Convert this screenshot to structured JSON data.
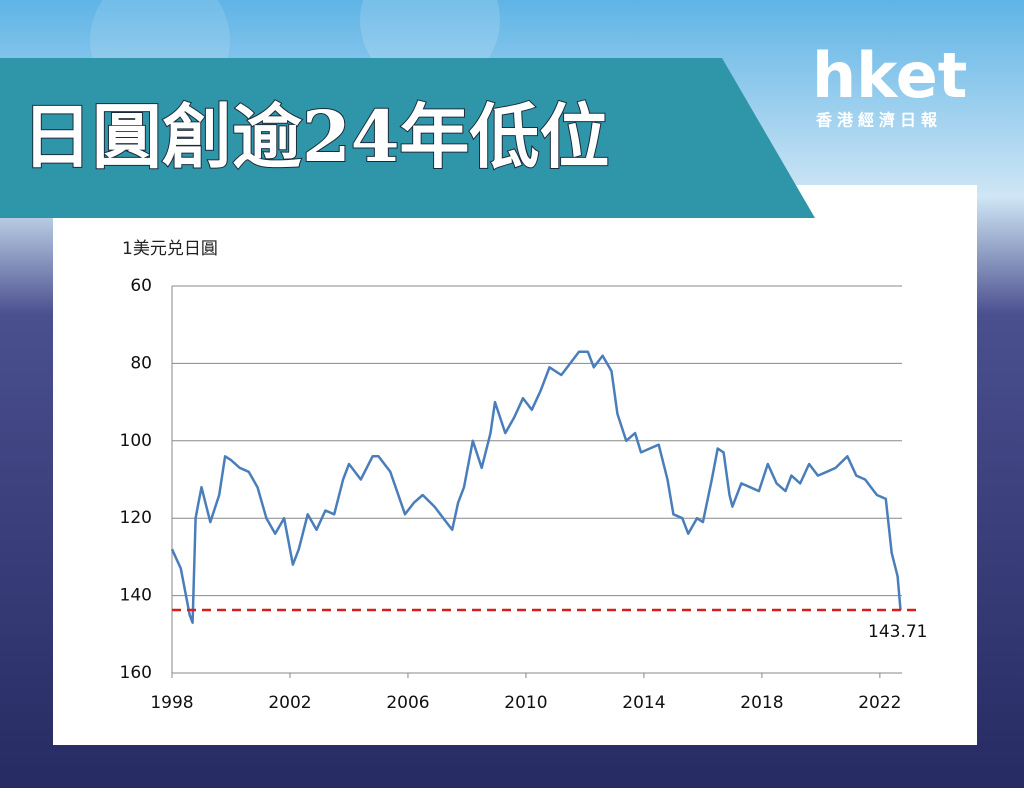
{
  "header": {
    "title": "日圓創逾24年低位",
    "logo": "hket",
    "logo_subtitle": "香港經濟日報"
  },
  "chart_data": {
    "type": "line",
    "y_axis_label": "1美元兑日圓",
    "color": "#4a7ebb",
    "x": [
      1998.0,
      1998.3,
      1998.6,
      1998.7,
      1998.8,
      1998.9,
      1999.0,
      1999.3,
      1999.6,
      1999.8,
      2000.0,
      2000.3,
      2000.6,
      2000.9,
      2001.2,
      2001.5,
      2001.8,
      2002.1,
      2002.3,
      2002.6,
      2002.9,
      2003.2,
      2003.5,
      2003.8,
      2004.0,
      2004.4,
      2004.8,
      2005.0,
      2005.4,
      2005.9,
      2006.2,
      2006.5,
      2006.9,
      2007.3,
      2007.5,
      2007.7,
      2007.9,
      2008.2,
      2008.5,
      2008.8,
      2008.95,
      2009.3,
      2009.6,
      2009.9,
      2010.2,
      2010.5,
      2010.8,
      2011.2,
      2011.5,
      2011.8,
      2012.1,
      2012.3,
      2012.6,
      2012.9,
      2013.1,
      2013.4,
      2013.7,
      2013.9,
      2014.2,
      2014.5,
      2014.8,
      2015.0,
      2015.3,
      2015.5,
      2015.8,
      2016.0,
      2016.3,
      2016.5,
      2016.7,
      2016.9,
      2017.0,
      2017.3,
      2017.6,
      2017.9,
      2018.2,
      2018.5,
      2018.8,
      2019.0,
      2019.3,
      2019.6,
      2019.9,
      2020.2,
      2020.5,
      2020.9,
      2021.2,
      2021.5,
      2021.9,
      2022.2,
      2022.4,
      2022.6,
      2022.7
    ],
    "values": [
      128,
      133,
      145,
      147,
      120,
      116,
      112,
      121,
      114,
      104,
      105,
      107,
      108,
      112,
      120,
      124,
      120,
      132,
      128,
      119,
      123,
      118,
      119,
      110,
      106,
      110,
      104,
      104,
      108,
      119,
      116,
      114,
      117,
      121,
      123,
      116,
      112,
      100,
      107,
      98,
      90,
      98,
      94,
      89,
      92,
      87,
      81,
      83,
      80,
      77,
      77,
      81,
      78,
      82,
      93,
      100,
      98,
      103,
      102,
      101,
      110,
      119,
      120,
      124,
      120,
      121,
      110,
      102,
      103,
      114,
      117,
      111,
      112,
      113,
      106,
      111,
      113,
      109,
      111,
      106,
      109,
      108,
      107,
      104,
      109,
      110,
      114,
      115,
      129,
      135,
      143.71
    ],
    "reference_value": 143.71,
    "reference_color": "#d42020",
    "xlim": [
      1998,
      2022.75
    ],
    "xticks": [
      1998,
      2002,
      2006,
      2010,
      2014,
      2018,
      2022
    ],
    "ylim": [
      60,
      160
    ],
    "yticks": [
      60,
      80,
      100,
      120,
      140,
      160
    ],
    "y_inverted": true,
    "grid": true
  }
}
